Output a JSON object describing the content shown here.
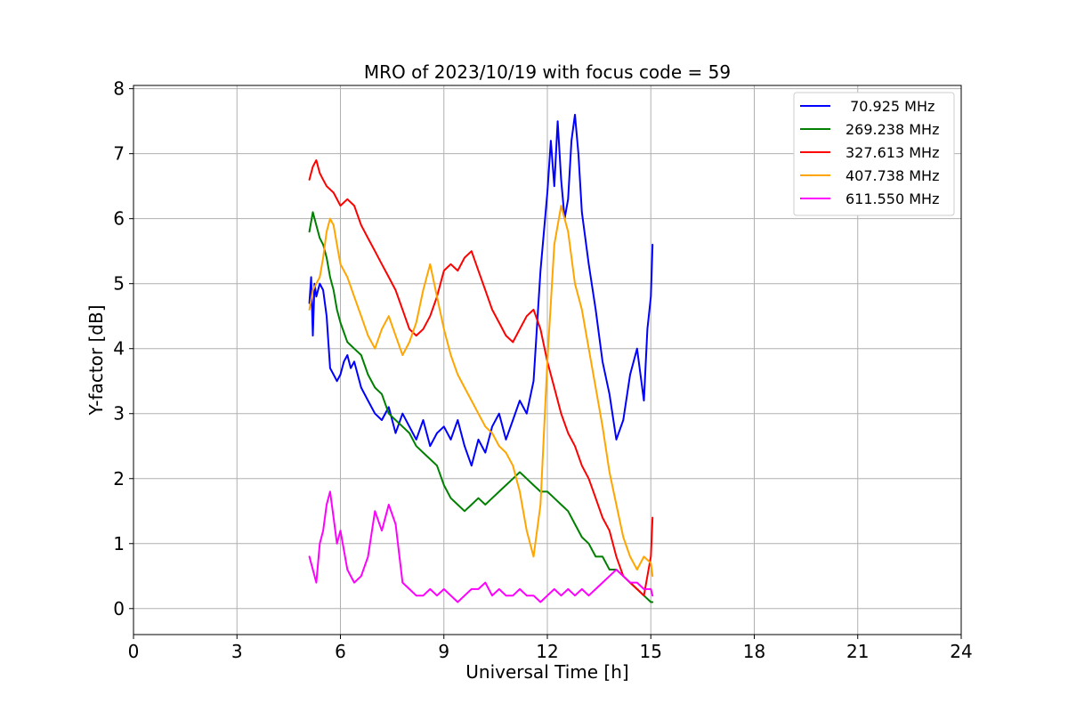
{
  "chart_data": {
    "type": "line",
    "title": "MRO of 2023/10/19 with focus code = 59",
    "xlabel": "Universal Time [h]",
    "ylabel": "Y-factor [dB]",
    "xlim": [
      0,
      24
    ],
    "ylim": [
      -0.4,
      8.05
    ],
    "xticks": [
      0,
      3,
      6,
      9,
      12,
      15,
      18,
      21,
      24
    ],
    "yticks": [
      0,
      1,
      2,
      3,
      4,
      5,
      6,
      7,
      8
    ],
    "grid": true,
    "legend_position": "top-right",
    "series": [
      {
        "name": " 70.925 MHz",
        "color": "#0000ff",
        "x": [
          5.1,
          5.15,
          5.2,
          5.25,
          5.3,
          5.4,
          5.5,
          5.6,
          5.7,
          5.8,
          5.9,
          6.0,
          6.1,
          6.2,
          6.3,
          6.4,
          6.5,
          6.6,
          6.8,
          7.0,
          7.2,
          7.4,
          7.6,
          7.8,
          8.0,
          8.2,
          8.4,
          8.6,
          8.8,
          9.0,
          9.2,
          9.4,
          9.6,
          9.8,
          10.0,
          10.2,
          10.4,
          10.6,
          10.8,
          11.0,
          11.2,
          11.4,
          11.6,
          11.8,
          12.0,
          12.1,
          12.2,
          12.3,
          12.4,
          12.5,
          12.6,
          12.7,
          12.8,
          12.9,
          13.0,
          13.2,
          13.4,
          13.6,
          13.8,
          14.0,
          14.2,
          14.4,
          14.6,
          14.8,
          14.9,
          15.0,
          15.05
        ],
        "y": [
          4.7,
          5.1,
          4.2,
          5.0,
          4.8,
          5.0,
          4.9,
          4.5,
          3.7,
          3.6,
          3.5,
          3.6,
          3.8,
          3.9,
          3.7,
          3.8,
          3.6,
          3.4,
          3.2,
          3.0,
          2.9,
          3.1,
          2.7,
          3.0,
          2.8,
          2.6,
          2.9,
          2.5,
          2.7,
          2.8,
          2.6,
          2.9,
          2.5,
          2.2,
          2.6,
          2.4,
          2.8,
          3.0,
          2.6,
          2.9,
          3.2,
          3.0,
          3.5,
          5.2,
          6.4,
          7.2,
          6.5,
          7.5,
          6.6,
          6.0,
          6.3,
          7.2,
          7.6,
          7.0,
          6.1,
          5.3,
          4.6,
          3.8,
          3.3,
          2.6,
          2.9,
          3.6,
          4.0,
          3.2,
          4.3,
          4.8,
          5.6
        ]
      },
      {
        "name": "269.238 MHz",
        "color": "#008000",
        "x": [
          5.1,
          5.2,
          5.3,
          5.4,
          5.5,
          5.6,
          5.7,
          5.8,
          5.9,
          6.0,
          6.2,
          6.4,
          6.6,
          6.8,
          7.0,
          7.2,
          7.4,
          7.6,
          7.8,
          8.0,
          8.2,
          8.4,
          8.6,
          8.8,
          9.0,
          9.2,
          9.4,
          9.6,
          9.8,
          10.0,
          10.2,
          10.4,
          10.6,
          10.8,
          11.0,
          11.2,
          11.4,
          11.6,
          11.8,
          12.0,
          12.2,
          12.4,
          12.6,
          12.8,
          13.0,
          13.2,
          13.4,
          13.6,
          13.8,
          14.0,
          14.2,
          14.4,
          14.6,
          14.8,
          15.0,
          15.05
        ],
        "y": [
          5.8,
          6.1,
          5.9,
          5.7,
          5.6,
          5.4,
          5.1,
          4.9,
          4.6,
          4.4,
          4.1,
          4.0,
          3.9,
          3.6,
          3.4,
          3.3,
          3.0,
          2.9,
          2.8,
          2.7,
          2.5,
          2.4,
          2.3,
          2.2,
          1.9,
          1.7,
          1.6,
          1.5,
          1.6,
          1.7,
          1.6,
          1.7,
          1.8,
          1.9,
          2.0,
          2.1,
          2.0,
          1.9,
          1.8,
          1.8,
          1.7,
          1.6,
          1.5,
          1.3,
          1.1,
          1.0,
          0.8,
          0.8,
          0.6,
          0.6,
          0.5,
          0.4,
          0.3,
          0.2,
          0.1,
          0.1
        ]
      },
      {
        "name": "327.613 MHz",
        "color": "#ff0000",
        "x": [
          5.1,
          5.2,
          5.3,
          5.4,
          5.5,
          5.6,
          5.8,
          6.0,
          6.2,
          6.4,
          6.6,
          6.8,
          7.0,
          7.2,
          7.4,
          7.6,
          7.8,
          8.0,
          8.2,
          8.4,
          8.6,
          8.8,
          9.0,
          9.2,
          9.4,
          9.6,
          9.8,
          10.0,
          10.2,
          10.4,
          10.6,
          10.8,
          11.0,
          11.2,
          11.4,
          11.6,
          11.8,
          12.0,
          12.2,
          12.4,
          12.6,
          12.8,
          13.0,
          13.2,
          13.4,
          13.6,
          13.8,
          14.0,
          14.2,
          14.4,
          14.6,
          14.8,
          15.0,
          15.05
        ],
        "y": [
          6.6,
          6.8,
          6.9,
          6.7,
          6.6,
          6.5,
          6.4,
          6.2,
          6.3,
          6.2,
          5.9,
          5.7,
          5.5,
          5.3,
          5.1,
          4.9,
          4.6,
          4.3,
          4.2,
          4.3,
          4.5,
          4.8,
          5.2,
          5.3,
          5.2,
          5.4,
          5.5,
          5.2,
          4.9,
          4.6,
          4.4,
          4.2,
          4.1,
          4.3,
          4.5,
          4.6,
          4.3,
          3.8,
          3.4,
          3.0,
          2.7,
          2.5,
          2.2,
          2.0,
          1.7,
          1.4,
          1.2,
          0.8,
          0.5,
          0.4,
          0.3,
          0.2,
          0.8,
          1.4
        ]
      },
      {
        "name": "407.738 MHz",
        "color": "#ffa500",
        "x": [
          5.1,
          5.2,
          5.3,
          5.4,
          5.5,
          5.6,
          5.7,
          5.8,
          5.9,
          6.0,
          6.2,
          6.4,
          6.6,
          6.8,
          7.0,
          7.2,
          7.4,
          7.6,
          7.8,
          8.0,
          8.2,
          8.4,
          8.6,
          8.8,
          9.0,
          9.2,
          9.4,
          9.6,
          9.8,
          10.0,
          10.2,
          10.4,
          10.6,
          10.8,
          11.0,
          11.2,
          11.4,
          11.6,
          11.8,
          12.0,
          12.2,
          12.4,
          12.6,
          12.8,
          13.0,
          13.2,
          13.4,
          13.6,
          13.8,
          14.0,
          14.2,
          14.4,
          14.6,
          14.8,
          15.0,
          15.05
        ],
        "y": [
          4.6,
          4.9,
          5.0,
          5.1,
          5.4,
          5.8,
          6.0,
          5.9,
          5.6,
          5.3,
          5.1,
          4.8,
          4.5,
          4.2,
          4.0,
          4.3,
          4.5,
          4.2,
          3.9,
          4.1,
          4.4,
          4.9,
          5.3,
          4.8,
          4.3,
          3.9,
          3.6,
          3.4,
          3.2,
          3.0,
          2.8,
          2.7,
          2.5,
          2.4,
          2.2,
          1.8,
          1.2,
          0.8,
          1.6,
          3.8,
          5.6,
          6.2,
          5.8,
          5.0,
          4.6,
          4.0,
          3.4,
          2.8,
          2.1,
          1.6,
          1.1,
          0.8,
          0.6,
          0.8,
          0.7,
          0.5
        ]
      },
      {
        "name": "611.550 MHz",
        "color": "#ff00ff",
        "x": [
          5.1,
          5.2,
          5.3,
          5.4,
          5.5,
          5.6,
          5.7,
          5.8,
          5.9,
          6.0,
          6.2,
          6.4,
          6.6,
          6.8,
          7.0,
          7.2,
          7.4,
          7.6,
          7.8,
          8.0,
          8.2,
          8.4,
          8.6,
          8.8,
          9.0,
          9.2,
          9.4,
          9.6,
          9.8,
          10.0,
          10.2,
          10.4,
          10.6,
          10.8,
          11.0,
          11.2,
          11.4,
          11.6,
          11.8,
          12.0,
          12.2,
          12.4,
          12.6,
          12.8,
          13.0,
          13.2,
          13.4,
          13.6,
          13.8,
          14.0,
          14.2,
          14.4,
          14.6,
          14.8,
          15.0,
          15.05
        ],
        "y": [
          0.8,
          0.6,
          0.4,
          1.0,
          1.2,
          1.6,
          1.8,
          1.4,
          1.0,
          1.2,
          0.6,
          0.4,
          0.5,
          0.8,
          1.5,
          1.2,
          1.6,
          1.3,
          0.4,
          0.3,
          0.2,
          0.2,
          0.3,
          0.2,
          0.3,
          0.2,
          0.1,
          0.2,
          0.3,
          0.3,
          0.4,
          0.2,
          0.3,
          0.2,
          0.2,
          0.3,
          0.2,
          0.2,
          0.1,
          0.2,
          0.3,
          0.2,
          0.3,
          0.2,
          0.3,
          0.2,
          0.3,
          0.4,
          0.5,
          0.6,
          0.5,
          0.4,
          0.4,
          0.3,
          0.3,
          0.2
        ]
      }
    ]
  }
}
